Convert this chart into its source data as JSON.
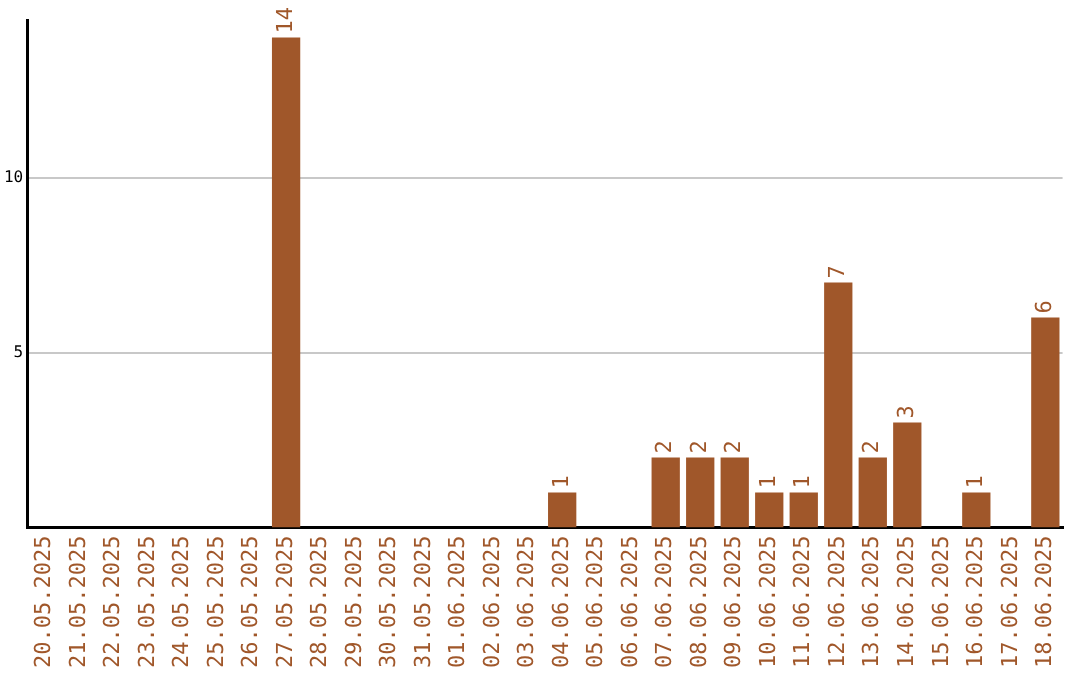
{
  "chart_data": {
    "type": "bar",
    "categories": [
      "20.05.2025",
      "21.05.2025",
      "22.05.2025",
      "23.05.2025",
      "24.05.2025",
      "25.05.2025",
      "26.05.2025",
      "27.05.2025",
      "28.05.2025",
      "29.05.2025",
      "30.05.2025",
      "31.05.2025",
      "01.06.2025",
      "02.06.2025",
      "03.06.2025",
      "04.06.2025",
      "05.06.2025",
      "06.06.2025",
      "07.06.2025",
      "08.06.2025",
      "09.06.2025",
      "10.06.2025",
      "11.06.2025",
      "12.06.2025",
      "13.06.2025",
      "14.06.2025",
      "15.06.2025",
      "16.06.2025",
      "17.06.2025",
      "18.06.2025"
    ],
    "values": [
      0,
      0,
      0,
      0,
      0,
      0,
      0,
      14,
      0,
      0,
      0,
      0,
      0,
      0,
      0,
      1,
      0,
      0,
      2,
      2,
      2,
      1,
      1,
      7,
      2,
      3,
      0,
      1,
      0,
      6
    ],
    "value_labels": [
      null,
      null,
      null,
      null,
      null,
      null,
      null,
      "14",
      null,
      null,
      null,
      null,
      null,
      null,
      null,
      "1",
      null,
      null,
      "2",
      "2",
      "2",
      "1",
      "1",
      "7",
      "2",
      "3",
      null,
      "1",
      null,
      "6"
    ],
    "color": "#a0572a",
    "ylim": [
      0,
      14.5
    ],
    "yticks": [
      5,
      10
    ],
    "grid": "y",
    "legend": false
  }
}
